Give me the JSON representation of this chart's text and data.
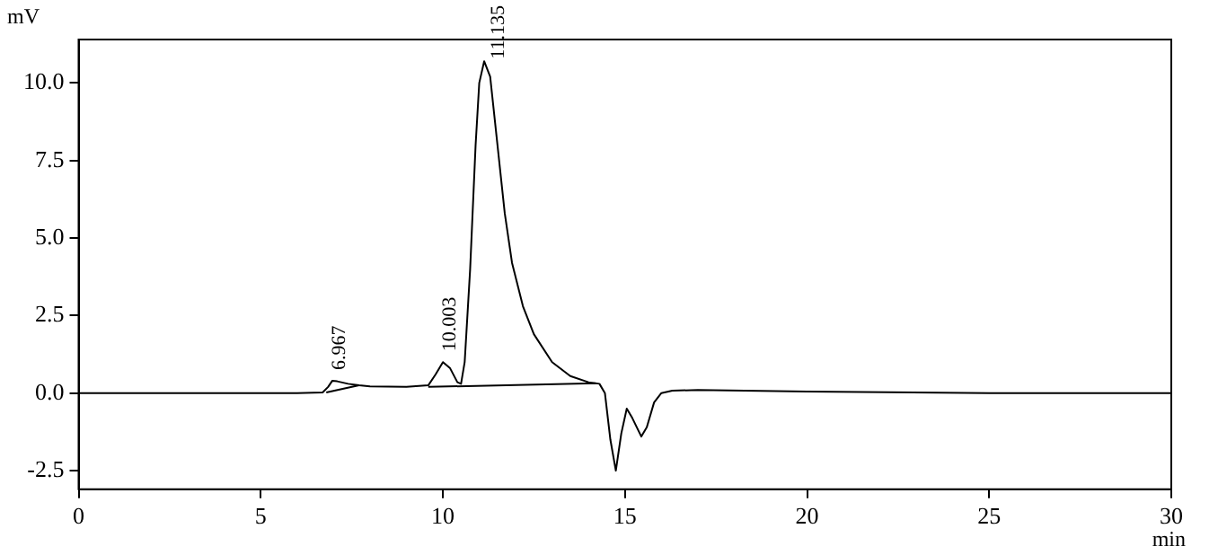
{
  "chart_data": {
    "type": "line",
    "xlabel": "min",
    "ylabel": "mV",
    "xlim": [
      0,
      30
    ],
    "xticks": [
      0,
      5,
      10,
      15,
      20,
      25,
      30
    ],
    "ylim": [
      -3.1,
      11.4
    ],
    "yticks": [
      {
        "value": -2.5,
        "label": "-2.5"
      },
      {
        "value": 0,
        "label": "0.0"
      },
      {
        "value": 2.5,
        "label": "2.5"
      },
      {
        "value": 5,
        "label": "5.0"
      },
      {
        "value": 7.5,
        "label": "7.5"
      },
      {
        "value": 10,
        "label": "10.0"
      }
    ],
    "grid": false,
    "legend": false,
    "series": [
      {
        "color": "#000000",
        "x": [
          0,
          6,
          6.7,
          6.85,
          6.967,
          7.1,
          7.4,
          7.7,
          8,
          9,
          9.6,
          9.8,
          10.003,
          10.2,
          10.4,
          10.5,
          10.6,
          10.75,
          10.9,
          11.0,
          11.135,
          11.3,
          11.5,
          11.7,
          11.9,
          12.2,
          12.5,
          13.0,
          13.5,
          14.0,
          14.3,
          14.45,
          14.6,
          14.75,
          14.9,
          15.05,
          15.2,
          15.45,
          15.6,
          15.8,
          16.0,
          16.3,
          17,
          20,
          25,
          30
        ],
        "values": [
          0,
          0,
          0.02,
          0.2,
          0.4,
          0.38,
          0.3,
          0.25,
          0.22,
          0.2,
          0.25,
          0.6,
          1.0,
          0.8,
          0.35,
          0.3,
          1.0,
          4,
          8,
          10.0,
          10.7,
          10.2,
          8.0,
          5.8,
          4.2,
          2.8,
          1.9,
          1.0,
          0.55,
          0.35,
          0.3,
          0,
          -1.5,
          -2.5,
          -1.3,
          -0.5,
          -0.8,
          -1.4,
          -1.1,
          -0.3,
          0,
          0.08,
          0.1,
          0.05,
          0,
          0
        ]
      },
      {
        "color": "#000000",
        "x": [
          6.8,
          7.7
        ],
        "values": [
          0.02,
          0.25
        ]
      },
      {
        "color": "#000000",
        "x": [
          9.6,
          14.2
        ],
        "values": [
          0.2,
          0.32
        ]
      }
    ],
    "annotations": [
      {
        "text": "6.967",
        "x": 6.967,
        "y": 0.4
      },
      {
        "text": "10.003",
        "x": 10.003,
        "y": 1.0
      },
      {
        "text": "11.135",
        "x": 11.135,
        "y": 10.7
      }
    ]
  }
}
